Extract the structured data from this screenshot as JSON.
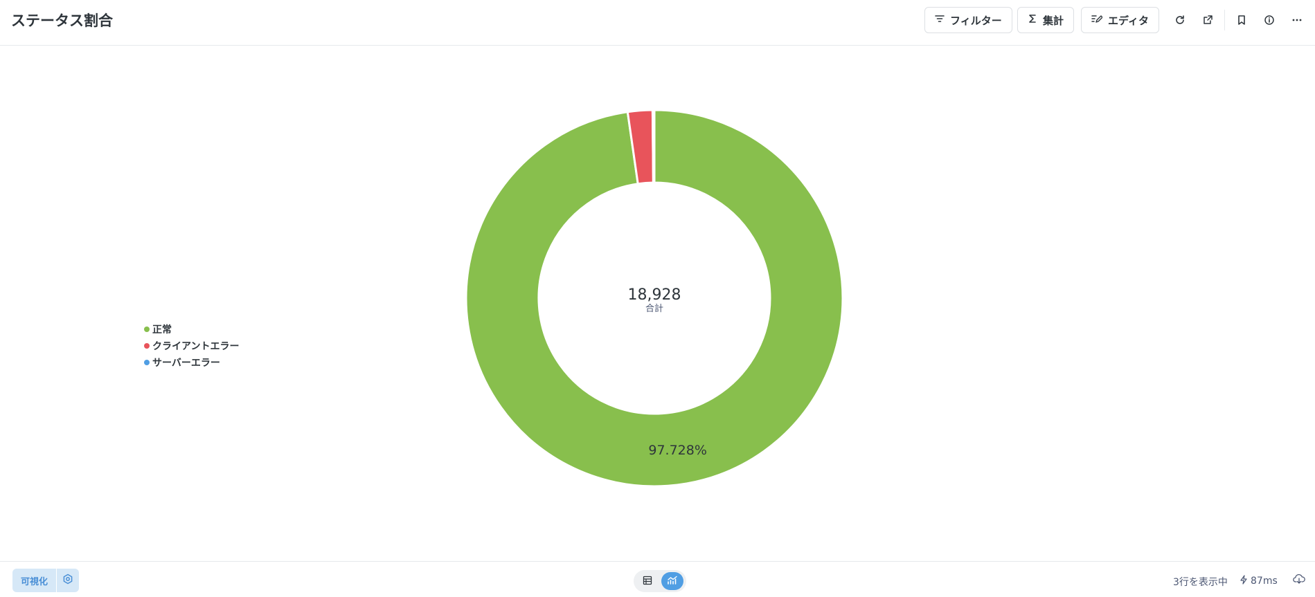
{
  "header": {
    "title": "ステータス割合",
    "filter_label": "フィルター",
    "summarize_label": "集計",
    "editor_label": "エディタ"
  },
  "chart_data": {
    "type": "pie",
    "categories": [
      "正常",
      "クライアントエラー",
      "サーバーエラー"
    ],
    "values": [
      18498,
      401,
      29
    ],
    "colors": [
      "#88bf4d",
      "#e8545b",
      "#509ee3"
    ],
    "center_value": "18,928",
    "center_label": "合計",
    "slice_labels": [
      "97.728%",
      "",
      ""
    ],
    "legend_position": "left"
  },
  "footer": {
    "visualize_label": "可視化",
    "row_count": "3行を表示中",
    "timing": "87ms"
  },
  "icons": [
    "filter-icon",
    "sigma-icon",
    "editor-icon",
    "refresh-icon",
    "external-link-icon",
    "bookmark-icon",
    "info-icon",
    "more-icon",
    "gear-icon",
    "table-icon",
    "chart-icon",
    "bolt-icon",
    "download-icon"
  ]
}
